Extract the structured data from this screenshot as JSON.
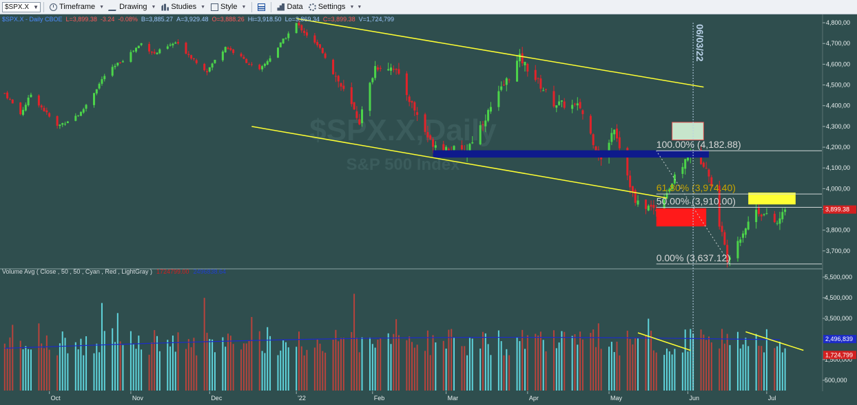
{
  "toolbar": {
    "symbol": "$SPX.X",
    "buttons": [
      {
        "label": "Timeframe",
        "icon": "clock-icon"
      },
      {
        "label": "Drawing",
        "icon": "drawing-icon"
      },
      {
        "label": "Studies",
        "icon": "studies-icon"
      },
      {
        "label": "Style",
        "icon": "style-icon"
      },
      {
        "label": "Data",
        "icon": "data-icon"
      },
      {
        "label": "Settings",
        "icon": "gear-icon"
      }
    ]
  },
  "infobar": {
    "symbol": "$SPX.X - Daily CBOE",
    "last": "L=3,899.38",
    "change": "-3.24",
    "change_pct": "-0.08%",
    "bid": "B=3,885.27",
    "ask": "A=3,929.48",
    "open": "O=3,888.26",
    "high": "Hi=3,918.50",
    "low": "Lo=3,869.34",
    "close": "C=3,899.38",
    "volume": "V=1,724,799"
  },
  "volume_study": {
    "label": "Volume Avg ( Close , 50 , 50 , Cyan , Red , LightGray )",
    "value_red": "1724799.00",
    "value_blue": "2496838.64"
  },
  "colors": {
    "background": "#2f4e4e",
    "up": "#4cd44a",
    "down": "#e2232a",
    "vol_up": "#5fd4dc",
    "vol_down": "#b8433c",
    "trend": "#ffff33",
    "avg": "#1d2cc8"
  },
  "chart_data": {
    "type": "candlestick",
    "watermark_symbol": "$SPX.X,Daily",
    "watermark_name": "S&P 500 Index",
    "date_marker": "06/03/22",
    "x_labels": [
      "Oct",
      "Nov",
      "Dec",
      "'22",
      "Feb",
      "Mar",
      "Apr",
      "May",
      "Jun",
      "Jul"
    ],
    "price_axis": [
      "4,800,00",
      "4,700,00",
      "4,600,00",
      "4,500,00",
      "4,400,00",
      "4,300,00",
      "4,200,00",
      "4,100,00",
      "4,000,00",
      "3,900,00",
      "3,800,00",
      "3,700,00"
    ],
    "price_ylim": [
      3620,
      4840
    ],
    "price_ticks": [
      4800,
      4700,
      4600,
      4500,
      4400,
      4300,
      4200,
      4100,
      4000,
      3900,
      3800,
      3700
    ],
    "current_price_label": "3,899.38",
    "volume_axis": [
      "5,500,000",
      "4,500,000",
      "3,500,000",
      "1,500,000",
      "500,000"
    ],
    "volume_ticks": [
      5500000,
      4500000,
      3500000,
      1500000,
      500000
    ],
    "volume_ylim": [
      0,
      5800000
    ],
    "volume_current_labels": [
      "2,496,839",
      "1,724,799"
    ],
    "fibonacci": [
      {
        "label": "100.00% (4,182.88)",
        "value": 4182.88
      },
      {
        "label": "61.80% (3,974.40)",
        "value": 3974.4
      },
      {
        "label": "50.00% (3,910.00)",
        "value": 3910.0
      },
      {
        "label": "0.00% (3,637.12)",
        "value": 3637.12
      }
    ],
    "anchors": [
      {
        "date": "2021-09-14",
        "price": 4460
      },
      {
        "date": "2021-09-20",
        "price": 4360
      },
      {
        "date": "2021-09-24",
        "price": 4455
      },
      {
        "date": "2021-10-04",
        "price": 4300
      },
      {
        "date": "2021-10-13",
        "price": 4365
      },
      {
        "date": "2021-10-22",
        "price": 4545
      },
      {
        "date": "2021-11-05",
        "price": 4700
      },
      {
        "date": "2021-11-10",
        "price": 4650
      },
      {
        "date": "2021-11-18",
        "price": 4704
      },
      {
        "date": "2021-11-30",
        "price": 4567
      },
      {
        "date": "2021-12-07",
        "price": 4686
      },
      {
        "date": "2021-12-20",
        "price": 4568
      },
      {
        "date": "2022-01-03",
        "price": 4796
      },
      {
        "date": "2022-01-13",
        "price": 4660
      },
      {
        "date": "2022-01-27",
        "price": 4326
      },
      {
        "date": "2022-02-02",
        "price": 4589
      },
      {
        "date": "2022-02-09",
        "price": 4587
      },
      {
        "date": "2022-02-23",
        "price": 4225
      },
      {
        "date": "2022-03-08",
        "price": 4170
      },
      {
        "date": "2022-03-29",
        "price": 4631
      },
      {
        "date": "2022-04-11",
        "price": 4412
      },
      {
        "date": "2022-04-21",
        "price": 4393
      },
      {
        "date": "2022-04-29",
        "price": 4131
      },
      {
        "date": "2022-05-04",
        "price": 4300
      },
      {
        "date": "2022-05-12",
        "price": 3930
      },
      {
        "date": "2022-05-20",
        "price": 3901
      },
      {
        "date": "2022-06-02",
        "price": 4176
      },
      {
        "date": "2022-06-08",
        "price": 4115
      },
      {
        "date": "2022-06-16",
        "price": 3666
      },
      {
        "date": "2022-06-27",
        "price": 3900
      },
      {
        "date": "2022-07-05",
        "price": 3831
      },
      {
        "date": "2022-07-08",
        "price": 3899.38
      }
    ],
    "x_range": [
      "2021-09-13",
      "2022-07-22"
    ],
    "trendlines": [
      {
        "from": {
          "date": "2022-01-03",
          "price": 4820
        },
        "to": {
          "date": "2022-06-07",
          "price": 4490
        }
      },
      {
        "from": {
          "date": "2021-12-17",
          "price": 4300
        },
        "to": {
          "date": "2022-05-24",
          "price": 3955
        }
      }
    ],
    "zones": [
      {
        "name": "resistance-band",
        "from": "2022-02-24",
        "to": "2022-06-09",
        "top": 4185,
        "bottom": 4150,
        "color": "#0e1a8c"
      },
      {
        "name": "upper-target-box",
        "from": "2022-05-26",
        "to": "2022-06-07",
        "top": 4320,
        "bottom": 4235,
        "color": "#c7e5cc"
      },
      {
        "name": "gap-box-yellow",
        "from": "2022-06-24",
        "to": "2022-07-12",
        "top": 3981,
        "bottom": 3924,
        "color": "#ffff33"
      },
      {
        "name": "gap-box-red",
        "from": "2022-05-20",
        "to": "2022-06-08",
        "top": 3905,
        "bottom": 3818,
        "color": "#ff1a1a"
      }
    ],
    "volume_trendlines": [
      {
        "from": {
          "date": "2022-05-13",
          "vol": 2800000
        },
        "to": {
          "date": "2022-06-02",
          "vol": 1950000
        }
      },
      {
        "from": {
          "date": "2022-06-23",
          "vol": 2850000
        },
        "to": {
          "date": "2022-07-15",
          "vol": 1950000
        }
      }
    ]
  }
}
